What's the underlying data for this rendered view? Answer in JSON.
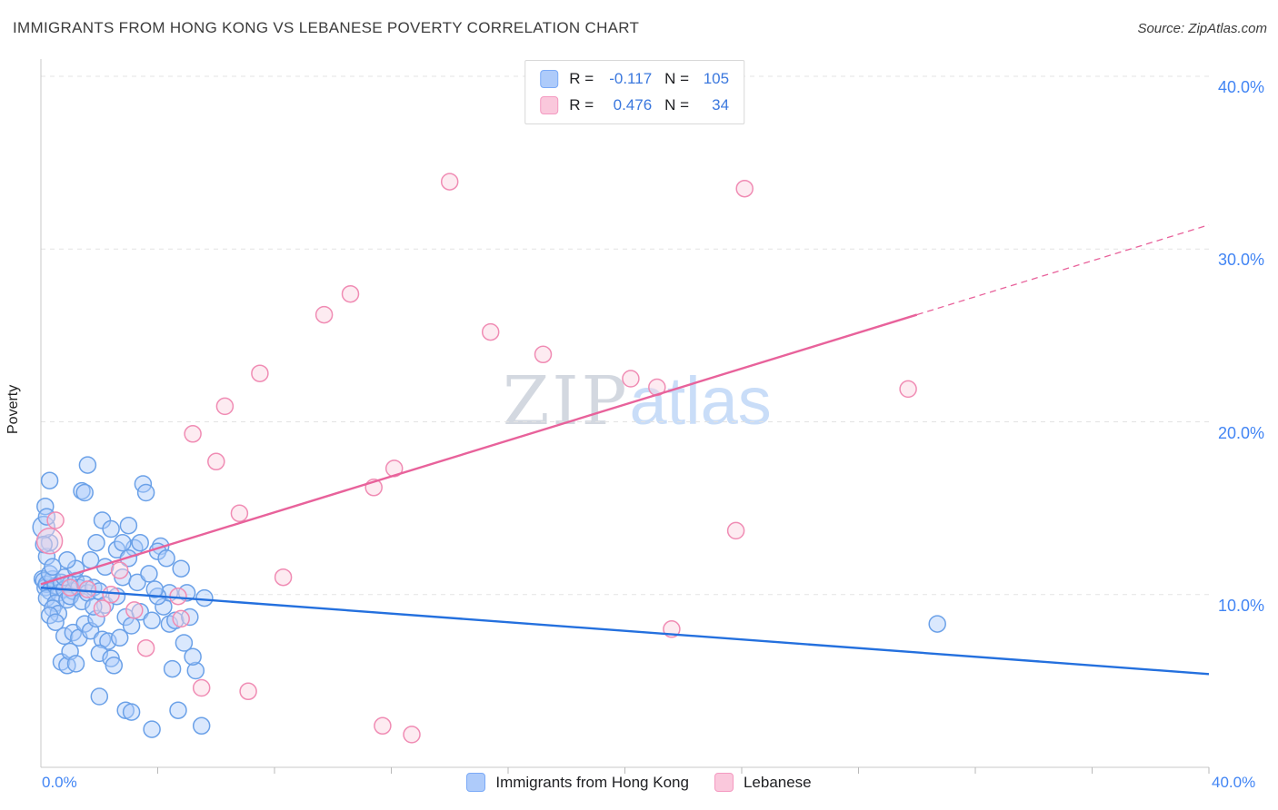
{
  "page": {
    "title": "IMMIGRANTS FROM HONG KONG VS LEBANESE POVERTY CORRELATION CHART",
    "source": "Source: ZipAtlas.com"
  },
  "watermark": {
    "part1": "ZIP",
    "part2": "atlas"
  },
  "axes": {
    "ylabel": "Poverty",
    "x_min_label": "0.0%",
    "x_max_label": "40.0%",
    "y_tick_labels": [
      "10.0%",
      "20.0%",
      "30.0%",
      "40.0%"
    ]
  },
  "legend_box": {
    "rows": [
      {
        "r_label": "R =",
        "r_value": "-0.117",
        "n_label": "N =",
        "n_value": "105",
        "swatch_fill": "#AECBFA",
        "swatch_border": "#7BAAF7"
      },
      {
        "r_label": "R =",
        "r_value": "0.476",
        "n_label": "N =",
        "n_value": "34",
        "swatch_fill": "#FAC8DC",
        "swatch_border": "#F49AC1"
      }
    ]
  },
  "bottom_legend": {
    "items": [
      {
        "label": "Immigrants from Hong Kong",
        "swatch_fill": "#AECBFA",
        "swatch_border": "#7BAAF7"
      },
      {
        "label": "Lebanese",
        "swatch_fill": "#FAC8DC",
        "swatch_border": "#F49AC1"
      }
    ]
  },
  "chart_data": {
    "type": "scatter",
    "title": "IMMIGRANTS FROM HONG KONG VS LEBANESE POVERTY CORRELATION CHART",
    "xlabel": "Immigrants from Hong Kong (%)",
    "ylabel": "Poverty (%)",
    "xlim": [
      0,
      40
    ],
    "ylim": [
      0,
      41
    ],
    "y_ticks": [
      10,
      20,
      30,
      40
    ],
    "x_tick_step": 4,
    "grid": "horizontal-dashed",
    "legend_position": "bottom-center",
    "colors": {
      "blue_stroke": "#6BA1E8",
      "blue_fill": "#AECBFA",
      "pink_stroke": "#F08CB4",
      "pink_fill": "#FAD2E0",
      "blue_trend": "#2470DE",
      "pink_trend": "#E8629B",
      "axis": "#c9c9c9",
      "gridline": "#e3e3e3",
      "tick_label": "#4285F4"
    },
    "series": [
      {
        "name": "Immigrants from Hong Kong",
        "R": -0.117,
        "N": 105,
        "stroke": "#6BA1E8",
        "fill": "#AECBFA",
        "points": [
          [
            0.05,
            10.9
          ],
          [
            0.1,
            10.8
          ],
          [
            0.15,
            10.4
          ],
          [
            0.2,
            10.6
          ],
          [
            0.3,
            10.2
          ],
          [
            0.2,
            9.8
          ],
          [
            0.4,
            10.9
          ],
          [
            0.5,
            10.5
          ],
          [
            0.3,
            11.2
          ],
          [
            0.6,
            10.1
          ],
          [
            0.5,
            9.5
          ],
          [
            0.7,
            10.7
          ],
          [
            0.8,
            10.3
          ],
          [
            0.4,
            9.2
          ],
          [
            0.6,
            8.9
          ],
          [
            0.9,
            9.7
          ],
          [
            1.0,
            10.6
          ],
          [
            1.1,
            10.2
          ],
          [
            0.8,
            11.0
          ],
          [
            1.2,
            10.8
          ],
          [
            1.0,
            9.9
          ],
          [
            1.3,
            10.4
          ],
          [
            1.5,
            10.6
          ],
          [
            1.4,
            9.6
          ],
          [
            1.6,
            10.1
          ],
          [
            1.8,
            10.4
          ],
          [
            2.0,
            10.2
          ],
          [
            0.2,
            12.2
          ],
          [
            0.3,
            13.0
          ],
          [
            0.1,
            13.9,
            12
          ],
          [
            0.15,
            15.1
          ],
          [
            0.3,
            16.6
          ],
          [
            1.6,
            17.5
          ],
          [
            1.4,
            16.0
          ],
          [
            1.5,
            15.9
          ],
          [
            3.5,
            16.4
          ],
          [
            3.6,
            15.9
          ],
          [
            2.1,
            14.3
          ],
          [
            2.4,
            13.8
          ],
          [
            1.9,
            13.0
          ],
          [
            2.6,
            12.6
          ],
          [
            3.2,
            12.7
          ],
          [
            4.1,
            12.8
          ],
          [
            3.0,
            12.1
          ],
          [
            2.2,
            11.6
          ],
          [
            2.8,
            11.0
          ],
          [
            3.3,
            10.7
          ],
          [
            3.7,
            11.2
          ],
          [
            4.0,
            12.5
          ],
          [
            4.3,
            12.1
          ],
          [
            1.7,
            12.0
          ],
          [
            1.2,
            11.5
          ],
          [
            0.9,
            12.0
          ],
          [
            0.3,
            8.8
          ],
          [
            0.5,
            8.4
          ],
          [
            0.8,
            7.6
          ],
          [
            0.7,
            6.1
          ],
          [
            0.9,
            5.9
          ],
          [
            1.1,
            7.8
          ],
          [
            1.3,
            7.5
          ],
          [
            1.5,
            8.3
          ],
          [
            1.7,
            7.9
          ],
          [
            1.9,
            8.6
          ],
          [
            2.1,
            7.4
          ],
          [
            2.3,
            7.3
          ],
          [
            2.0,
            6.6
          ],
          [
            2.4,
            6.3
          ],
          [
            1.0,
            6.7
          ],
          [
            1.2,
            6.0
          ],
          [
            2.7,
            7.5
          ],
          [
            2.9,
            8.7
          ],
          [
            3.1,
            8.2
          ],
          [
            3.4,
            9.0
          ],
          [
            3.8,
            8.5
          ],
          [
            4.2,
            9.3
          ],
          [
            4.4,
            8.3
          ],
          [
            4.6,
            8.5
          ],
          [
            2.5,
            5.9
          ],
          [
            2.0,
            4.1
          ],
          [
            2.9,
            3.3
          ],
          [
            3.1,
            3.2
          ],
          [
            3.8,
            2.2
          ],
          [
            4.7,
            3.3
          ],
          [
            5.5,
            2.4
          ],
          [
            4.5,
            5.7
          ],
          [
            5.3,
            5.6
          ],
          [
            4.9,
            7.2
          ],
          [
            5.1,
            8.7
          ],
          [
            5.6,
            9.8
          ],
          [
            4.4,
            10.1
          ],
          [
            4.0,
            9.9
          ],
          [
            3.9,
            10.3
          ],
          [
            5.0,
            10.1
          ],
          [
            4.8,
            11.5
          ],
          [
            3.4,
            13.0
          ],
          [
            2.8,
            13.0
          ],
          [
            3.0,
            14.0
          ],
          [
            0.2,
            14.5
          ],
          [
            0.1,
            12.9
          ],
          [
            5.2,
            6.4
          ],
          [
            2.2,
            9.4
          ],
          [
            2.6,
            9.9
          ],
          [
            1.8,
            9.3
          ],
          [
            0.4,
            11.6
          ],
          [
            30.7,
            8.3
          ]
        ]
      },
      {
        "name": "Lebanese",
        "R": 0.476,
        "N": 34,
        "stroke": "#F08CB4",
        "fill": "#FAD2E0",
        "points": [
          [
            0.3,
            13.1,
            14
          ],
          [
            0.5,
            14.3
          ],
          [
            1.0,
            10.4
          ],
          [
            1.6,
            10.3
          ],
          [
            2.1,
            9.2
          ],
          [
            2.7,
            11.4
          ],
          [
            2.4,
            10.0
          ],
          [
            3.2,
            9.1
          ],
          [
            3.6,
            6.9
          ],
          [
            4.7,
            9.9
          ],
          [
            4.8,
            8.6
          ],
          [
            5.5,
            4.6
          ],
          [
            7.1,
            4.4
          ],
          [
            6.3,
            20.9
          ],
          [
            5.2,
            19.3
          ],
          [
            6.0,
            17.7
          ],
          [
            6.8,
            14.7
          ],
          [
            7.5,
            22.8
          ],
          [
            8.3,
            11.0
          ],
          [
            10.6,
            27.4
          ],
          [
            9.7,
            26.2
          ],
          [
            12.1,
            17.3
          ],
          [
            11.4,
            16.2
          ],
          [
            14.0,
            33.9
          ],
          [
            15.4,
            25.2
          ],
          [
            17.2,
            23.9
          ],
          [
            21.1,
            22.0
          ],
          [
            24.1,
            33.5
          ],
          [
            21.6,
            8.0
          ],
          [
            23.8,
            13.7
          ],
          [
            29.7,
            21.9
          ],
          [
            11.7,
            2.4
          ],
          [
            12.7,
            1.9
          ],
          [
            20.2,
            22.5
          ]
        ]
      }
    ],
    "trends": [
      {
        "name": "hong-kong-trend",
        "color": "#2470DE",
        "x0": 0,
        "y0": 10.4,
        "x1": 40,
        "y1": 5.4,
        "solid_until": 40
      },
      {
        "name": "lebanese-trend",
        "color": "#E8629B",
        "x0": 0,
        "y0": 10.6,
        "x1": 40,
        "y1": 31.4,
        "solid_until": 30
      }
    ]
  }
}
